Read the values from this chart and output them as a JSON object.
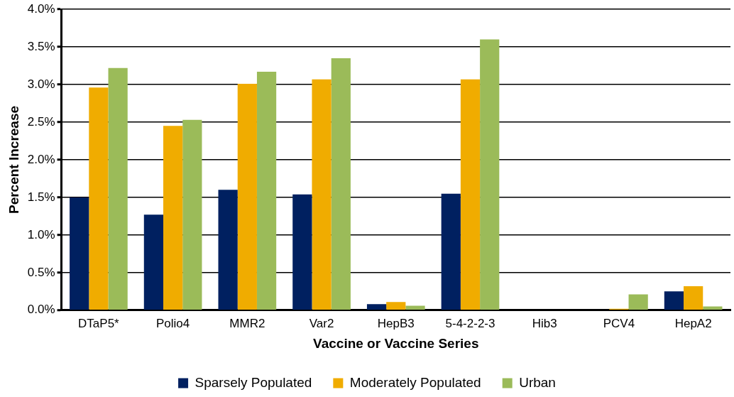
{
  "chart_data": {
    "type": "bar",
    "xlabel": "Vaccine or Vaccine Series",
    "ylabel": "Percent Increase",
    "categories": [
      "DTaP5*",
      "Polio4",
      "MMR2",
      "Var2",
      "HepB3",
      "5-4-2-2-3",
      "Hib3",
      "PCV4",
      "HepA2"
    ],
    "series": [
      {
        "name": "Sparsely Populated",
        "color": "#002060",
        "values": [
          1.5,
          1.27,
          1.6,
          1.54,
          0.08,
          1.55,
          0,
          0,
          0.25
        ]
      },
      {
        "name": "Moderately Populated",
        "color": "#f0ac00",
        "values": [
          2.96,
          2.45,
          3.01,
          3.07,
          0.11,
          3.07,
          0,
          0.02,
          0.32
        ]
      },
      {
        "name": "Urban",
        "color": "#9bbb59",
        "values": [
          3.22,
          2.53,
          3.17,
          3.35,
          0.06,
          3.6,
          0,
          0.21,
          0.05
        ]
      }
    ],
    "ylim": [
      0,
      4
    ],
    "yticks": [
      {
        "value": 0,
        "label": "0.0%"
      },
      {
        "value": 0.5,
        "label": "0.5%"
      },
      {
        "value": 1,
        "label": "1.0%"
      },
      {
        "value": 1.5,
        "label": "1.5%"
      },
      {
        "value": 2,
        "label": "2.0%"
      },
      {
        "value": 2.5,
        "label": "2.5%"
      },
      {
        "value": 3,
        "label": "3.0%"
      },
      {
        "value": 3.5,
        "label": "3.5%"
      },
      {
        "value": 4,
        "label": "4.0%"
      }
    ],
    "grid": "y",
    "legend": "bottom"
  }
}
